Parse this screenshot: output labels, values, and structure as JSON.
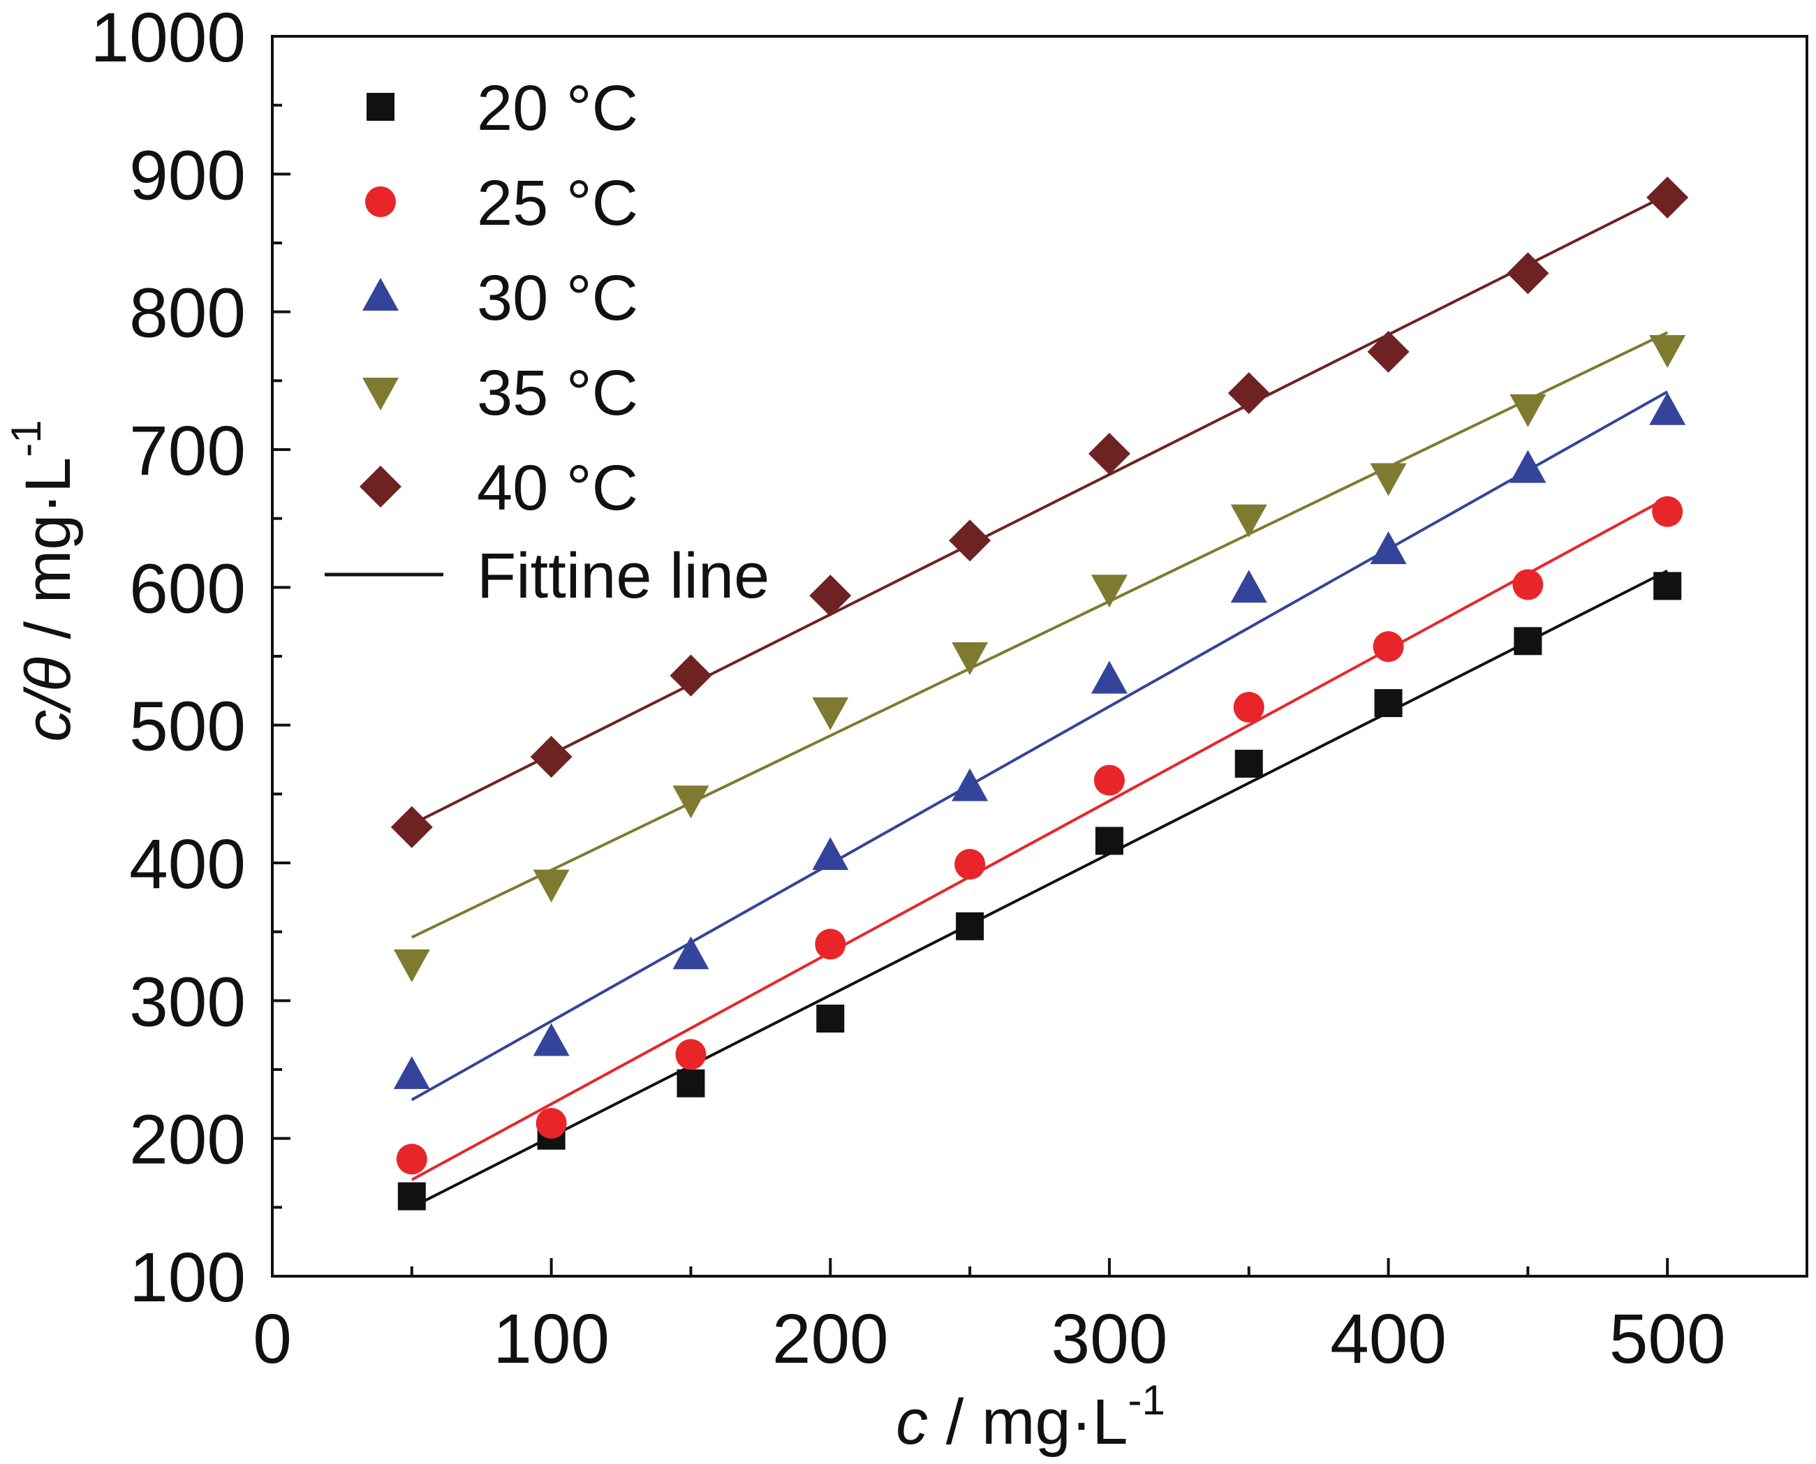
{
  "chart_data": {
    "type": "scatter",
    "xlabel": {
      "var": "c",
      "rest": " / mg·L",
      "sup": "-1"
    },
    "ylabel": {
      "var": "c/θ",
      "rest": " / mg·L",
      "sup": "-1"
    },
    "xlim": [
      0,
      550
    ],
    "ylim": [
      100,
      1000
    ],
    "xticks": [
      0,
      100,
      200,
      300,
      400,
      500
    ],
    "yticks": [
      100,
      200,
      300,
      400,
      500,
      600,
      700,
      800,
      900,
      1000
    ],
    "grid": false,
    "legend_position": "top-left",
    "x": [
      50,
      100,
      150,
      200,
      250,
      300,
      350,
      400,
      450,
      500
    ],
    "series": [
      {
        "name": "20 °C",
        "marker": "square",
        "color": "#111111",
        "values": [
          158,
          202,
          240,
          287,
          354,
          416,
          472,
          516,
          561,
          601
        ],
        "fit": [
          150,
          612
        ]
      },
      {
        "name": "25 °C",
        "marker": "circle",
        "color": "#e8262a",
        "values": [
          185,
          211,
          261,
          341,
          399,
          460,
          513,
          557,
          602,
          655
        ],
        "fit": [
          170,
          665
        ]
      },
      {
        "name": "30 °C",
        "marker": "triangle-up",
        "color": "#34449a",
        "values": [
          246,
          270,
          333,
          405,
          455,
          533,
          599,
          627,
          686,
          728
        ],
        "fit": [
          228,
          742
        ]
      },
      {
        "name": "35 °C",
        "marker": "triangle-down",
        "color": "#7e7a30",
        "values": [
          327,
          385,
          446,
          510,
          550,
          599,
          650,
          680,
          730,
          773
        ],
        "fit": [
          346,
          785
        ]
      },
      {
        "name": "40 °C",
        "marker": "diamond",
        "color": "#6e2322",
        "values": [
          426,
          477,
          536,
          594,
          634,
          697,
          741,
          771,
          828,
          883
        ],
        "fit": [
          428,
          885
        ]
      }
    ],
    "fit_legend": {
      "name": "Fittine line",
      "color": "#111111"
    }
  }
}
